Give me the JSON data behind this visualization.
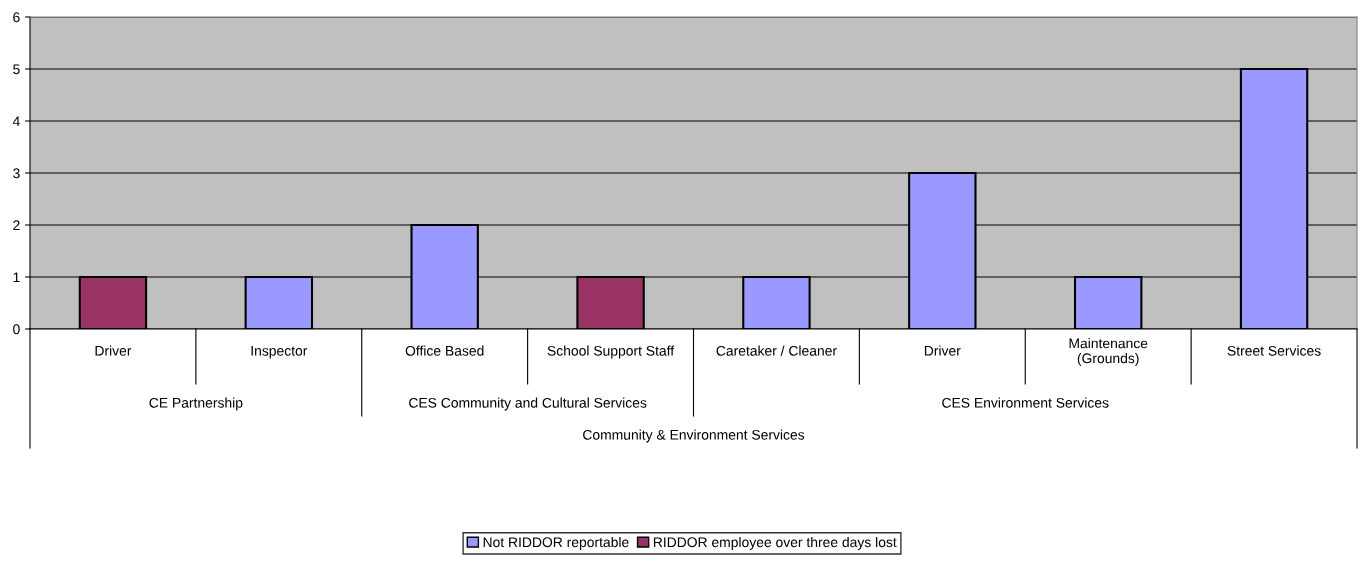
{
  "chart_data": {
    "type": "bar",
    "categories": [
      "Driver",
      "Inspector",
      "Office Based",
      "School Support Staff",
      "Caretaker / Cleaner",
      "Driver",
      "Maintenance\n(Grounds)",
      "Street Services"
    ],
    "series": [
      {
        "name": "Not RIDDOR reportable",
        "color": "#9999ff",
        "values": [
          null,
          1,
          2,
          null,
          1,
          3,
          1,
          5
        ]
      },
      {
        "name": "RIDDOR employee over three days lost",
        "color": "#993366",
        "values": [
          1,
          null,
          null,
          1,
          null,
          null,
          null,
          null
        ]
      }
    ],
    "annotations": [
      "CE Partnership",
      "CES Community and Cultural Services",
      "CES Environment Services",
      "Community & Environment Services"
    ],
    "ylim": [
      0,
      6
    ],
    "yticks": [
      0,
      1,
      2,
      3,
      4,
      5,
      6
    ],
    "grid": "y",
    "legend": "bottom"
  }
}
